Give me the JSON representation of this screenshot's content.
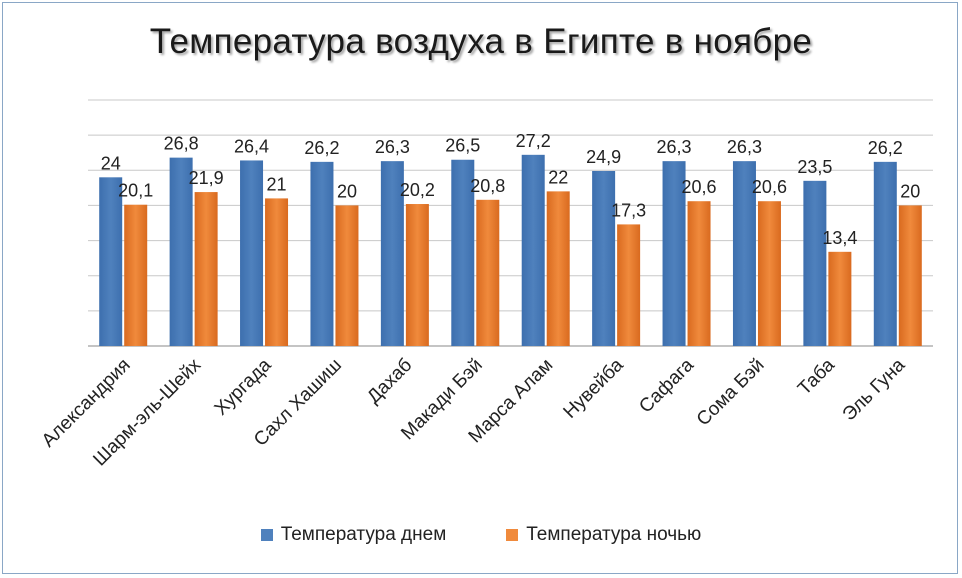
{
  "chart_data": {
    "type": "bar",
    "title": "Температура  воздуха в Египте  в ноябре",
    "categories": [
      "Александрия",
      "Шарм-эль-Шейх",
      "Хургада",
      "Сахл Хашиш",
      "Дахаб",
      "Макади Бэй",
      "Марса Алам",
      "Нувейба",
      "Сафага",
      "Сома Бэй",
      "Таба",
      "Эль Гуна"
    ],
    "series": [
      {
        "name": "Температура днем",
        "color": "#4f81bd",
        "values": [
          24,
          26.8,
          26.4,
          26.2,
          26.3,
          26.5,
          27.2,
          24.9,
          26.3,
          26.3,
          23.5,
          26.2
        ],
        "labels": [
          "24",
          "26,8",
          "26,4",
          "26,2",
          "26,3",
          "26,5",
          "27,2",
          "24,9",
          "26,3",
          "26,3",
          "23,5",
          "26,2"
        ]
      },
      {
        "name": "Температура ночью",
        "color": "#f08a3c",
        "values": [
          20.1,
          21.9,
          21,
          20,
          20.2,
          20.8,
          22,
          17.3,
          20.6,
          20.6,
          13.4,
          20
        ],
        "labels": [
          "20,1",
          "21,9",
          "21",
          "20",
          "20,2",
          "20,8",
          "22",
          "17,3",
          "20,6",
          "20,6",
          "13,4",
          "20"
        ]
      }
    ],
    "ylim": [
      0,
      35
    ],
    "grid": true,
    "legend_position": "bottom"
  }
}
